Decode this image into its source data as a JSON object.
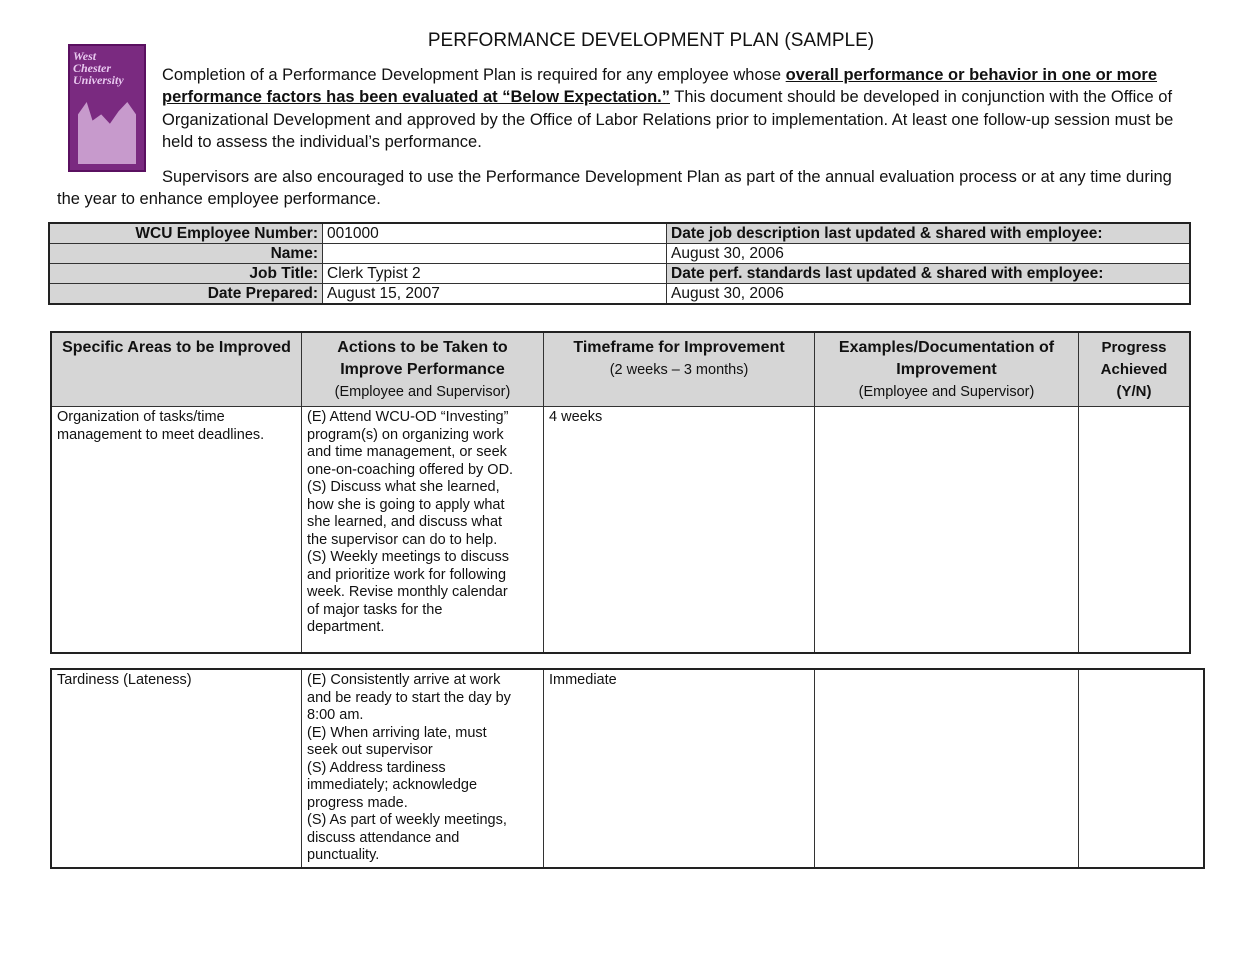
{
  "title": "PERFORMANCE DEVELOPMENT PLAN (SAMPLE)",
  "logo": {
    "text": "West Chester University",
    "color": "#7a2a80"
  },
  "intro": {
    "p1_start": "Completion of a Performance Development Plan is required for any employee whose ",
    "p1_bold": "overall performance or behavior in one or more performance factors has been evaluated at “Below Expectation.”",
    "p1_end": "  This document should be developed in conjunction with the Office of Organizational Development and approved by the Office of Labor Relations prior to implementation.  At least one follow-up session must be held to assess the individual’s performance.",
    "p2": "Supervisors are also encouraged to use the Performance Development Plan as part of the annual evaluation process or at any time during the year to enhance employee performance."
  },
  "info": {
    "employee_number_label": "WCU Employee Number:",
    "employee_number": "001000",
    "name_label": "Name:",
    "name": "",
    "job_title_label": "Job Title:",
    "job_title": "Clerk Typist 2",
    "date_prepared_label": "Date Prepared:",
    "date_prepared": "August 15, 2007",
    "job_desc_label": "Date job description last updated & shared with employee:",
    "job_desc_date": "August 30, 2006",
    "perf_std_label": "Date perf. standards last updated & shared with employee:",
    "perf_std_date": "August 30, 2006"
  },
  "plan": {
    "headers": [
      {
        "title": "Specific Areas to be Improved",
        "sub": ""
      },
      {
        "title": "Actions to be Taken to Improve Performance",
        "sub": "(Employee and Supervisor)"
      },
      {
        "title": "Timeframe for Improvement",
        "sub": "(2 weeks – 3 months)"
      },
      {
        "title": "Examples/Documentation of Improvement",
        "sub": "(Employee and Supervisor)"
      },
      {
        "title": "Progress Achieved (Y/N)",
        "sub": ""
      }
    ],
    "rows": [
      {
        "area": "Organization of tasks/time\nmanagement to meet deadlines.",
        "actions": "(E)  Attend WCU-OD “Investing”\nprogram(s) on organizing work\nand time management, or seek\none-on-coaching offered by OD.\n(S) Discuss what she learned,\nhow she is going to apply what\nshe learned, and discuss what\nthe supervisor can do to help.\n(S) Weekly meetings to discuss\nand prioritize work for following\nweek. Revise monthly calendar\nof major tasks for the\ndepartment.",
        "timeframe": "4 weeks",
        "examples": "",
        "progress": ""
      },
      {
        "area": "Tardiness (Lateness)",
        "actions": "(E) Consistently arrive at work\nand be ready to start the day by\n8:00 am.\n(E) When arriving late, must\nseek out supervisor\n(S) Address tardiness\nimmediately; acknowledge\nprogress made.\n(S) As part of weekly meetings,\ndiscuss attendance and\npunctuality.",
        "timeframe": "Immediate",
        "examples": "",
        "progress": ""
      }
    ]
  }
}
